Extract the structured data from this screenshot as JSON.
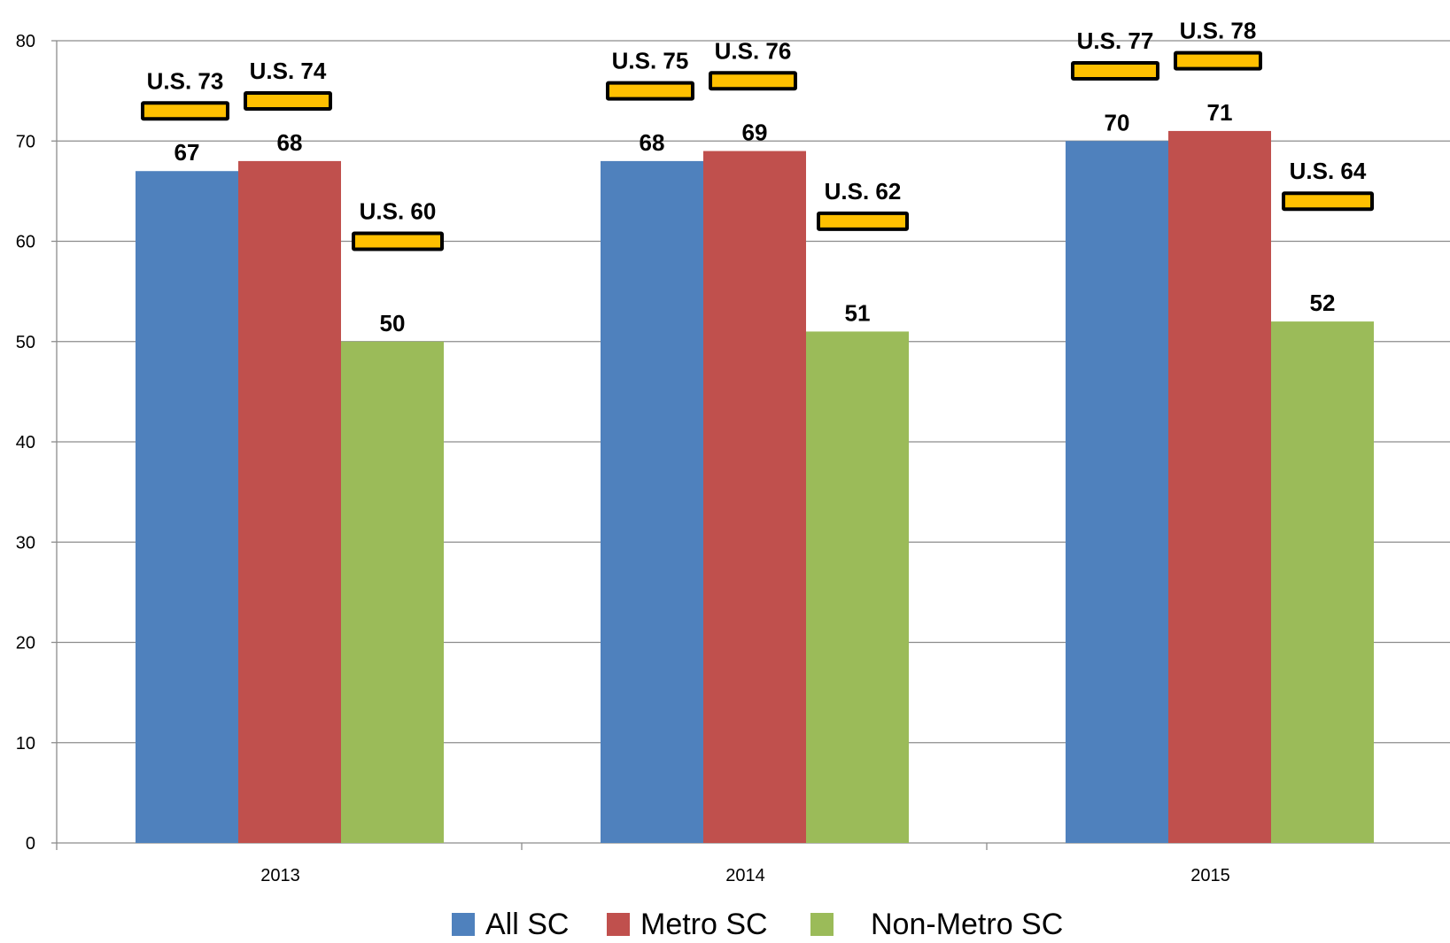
{
  "chart_data": {
    "type": "bar",
    "categories": [
      "2013",
      "2014",
      "2015"
    ],
    "series": [
      {
        "name": "All SC",
        "color": "#4F81BD",
        "values": [
          67,
          68,
          70
        ],
        "us_values": [
          73,
          75,
          77
        ]
      },
      {
        "name": "Metro SC",
        "color": "#C0504D",
        "values": [
          68,
          69,
          71
        ],
        "us_values": [
          74,
          76,
          78
        ]
      },
      {
        "name": "Non-Metro SC",
        "color": "#9BBB59",
        "values": [
          50,
          51,
          52
        ],
        "us_values": [
          60,
          62,
          64
        ]
      }
    ],
    "us_marker_prefix": "U.S.",
    "us_marker_color": "#FFC000",
    "yticks": [
      "0",
      "10",
      "20",
      "30",
      "40",
      "50",
      "60",
      "70",
      "80"
    ],
    "ylim": [
      0,
      80
    ],
    "grid": true,
    "legend_position": "bottom"
  }
}
